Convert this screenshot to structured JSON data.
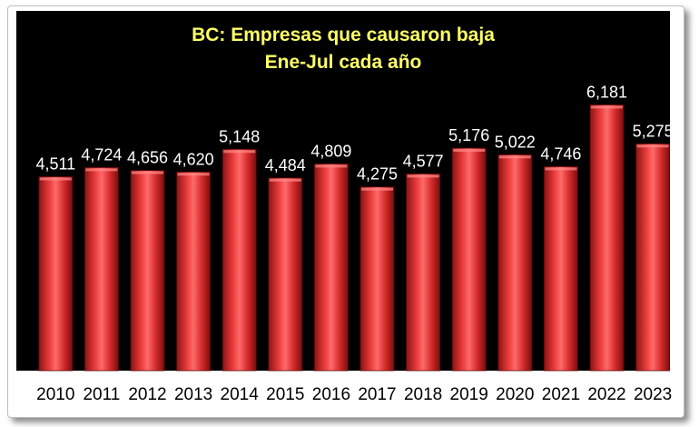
{
  "chart_data": {
    "type": "bar",
    "title": "BC: Empresas que causaron baja",
    "subtitle": "Ene-Jul cada año",
    "xlabel": "",
    "ylabel": "",
    "categories": [
      "2010",
      "2011",
      "2012",
      "2013",
      "2014",
      "2015",
      "2016",
      "2017",
      "2018",
      "2019",
      "2020",
      "2021",
      "2022",
      "2023"
    ],
    "values": [
      4511,
      4724,
      4656,
      4620,
      5148,
      4484,
      4809,
      4275,
      4577,
      5176,
      5022,
      4746,
      6181,
      5275
    ],
    "data_labels": [
      "4,511",
      "4,724",
      "4,656",
      "4,620",
      "5,148",
      "4,484",
      "4,809",
      "4,275",
      "4,577",
      "5,176",
      "5,022",
      "4,746",
      "6,181",
      "5,275"
    ],
    "ylim": [
      0,
      7500
    ],
    "grid": false,
    "legend": "none",
    "colors": {
      "bar": "#d42a2a",
      "bar_highlight": "#ff7070",
      "bar_shadow": "#7a0e0e",
      "plot_background": "#000000",
      "title": "#ffff66",
      "data_label": "#ffffff",
      "tick_label": "#000000"
    }
  }
}
